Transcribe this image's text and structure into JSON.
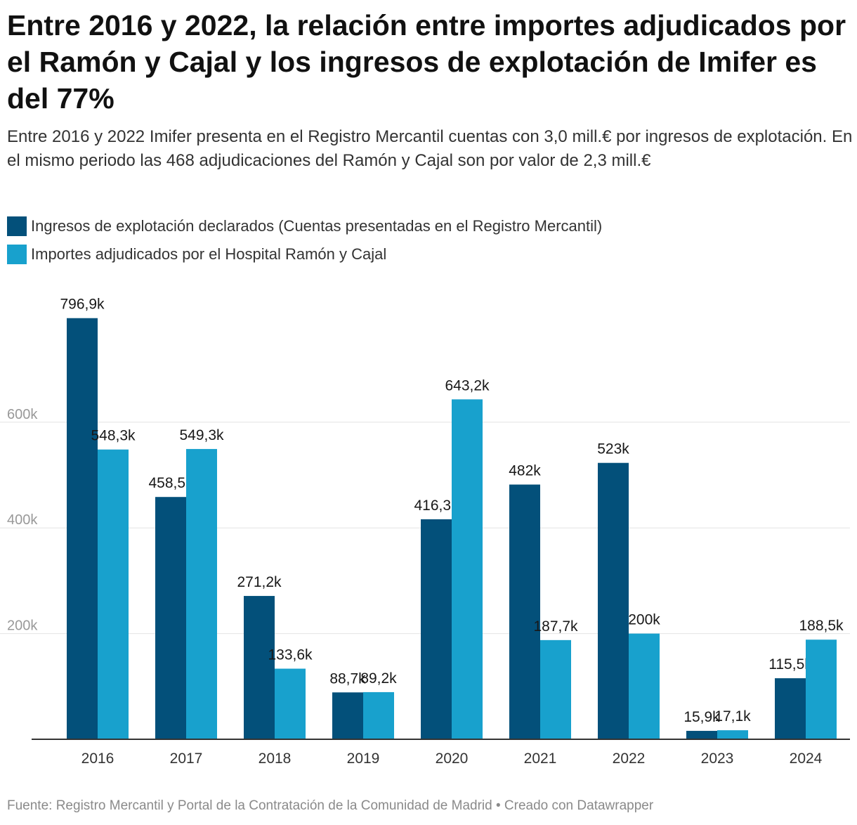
{
  "title": "Entre 2016 y 2022, la relación entre importes adjudicados por el Ramón y Cajal y los ingresos de explotación de Imifer es del 77%",
  "subtitle": "Entre 2016 y 2022 Imifer presenta en el Registro Mercantil cuentas con 3,0 mill.€ por ingresos de explotación. En el mismo periodo las 468 adjudicaciones del Ramón y Cajal son por valor de 2,3 mill.€",
  "footer": "Fuente: Registro Mercantil y Portal de la Contratación de la Comunidad de Madrid • Creado con Datawrapper",
  "colors": {
    "series1": "#03507a",
    "series2": "#18a1cd",
    "grid": "#e4e4e4",
    "axis": "#333333",
    "tick": "#999999"
  },
  "chart_data": {
    "type": "bar",
    "categories": [
      "2016",
      "2017",
      "2018",
      "2019",
      "2020",
      "2021",
      "2022",
      "2023",
      "2024"
    ],
    "series": [
      {
        "name": "Ingresos de explotación declarados (Cuentas presentadas en el Registro Mercantil)",
        "values": [
          796900,
          458500,
          271200,
          88700,
          416300,
          482000,
          523000,
          15900,
          115500
        ],
        "labels": [
          "796,9k",
          "458,5k",
          "271,2k",
          "88,7k",
          "416,3k",
          "482k",
          "523k",
          "15,9k",
          "115,5k"
        ]
      },
      {
        "name": "Importes adjudicados por el Hospital Ramón y Cajal",
        "values": [
          548300,
          549300,
          133600,
          89200,
          643200,
          187700,
          200000,
          17100,
          188500
        ],
        "labels": [
          "548,3k",
          "549,3k",
          "133,6k",
          "89,2k",
          "643,2k",
          "187,7k",
          "200k",
          "17,1k",
          "188,5k"
        ]
      }
    ],
    "yticks": [
      200000,
      400000,
      600000
    ],
    "ytick_labels": [
      "200k",
      "400k",
      "600k"
    ],
    "ylim": [
      0,
      800000
    ],
    "grid": true,
    "legend": "top-left"
  }
}
